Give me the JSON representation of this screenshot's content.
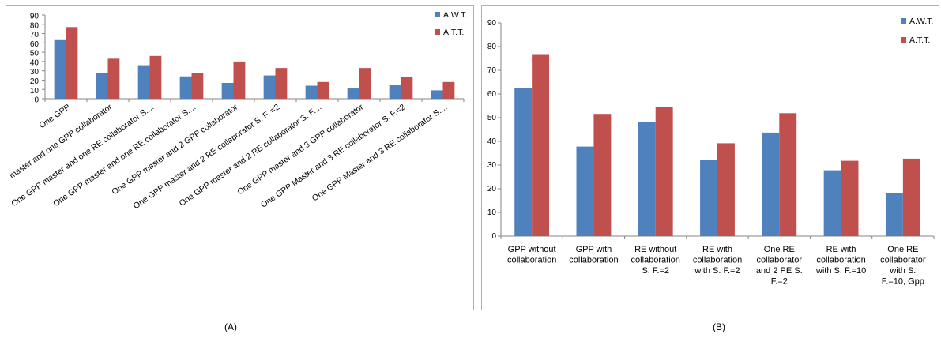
{
  "figure_captions": [
    "(A)",
    "(B)"
  ],
  "colors": {
    "awt": "#4f81bd",
    "att": "#c0504d",
    "axis": "#868686",
    "frame": "#b0b0b0"
  },
  "chart_data": [
    {
      "type": "bar",
      "title": "",
      "xlabel": "",
      "ylabel": "",
      "ylim": [
        0,
        90
      ],
      "yticks": [
        0,
        10,
        20,
        30,
        40,
        50,
        60,
        70,
        80,
        90
      ],
      "grid": false,
      "legend_position": "top-right",
      "categories": [
        "One GPP",
        "master and one GPP collaborator",
        "One GPP master and one RE collaborator S....",
        "One GPP master and one RE collaborator S....",
        "One GPP master and 2 GPP collaborator",
        "One GPP master and 2 RE collaborator S. F. =2",
        "One GPP master and 2 RE collaborator S. F....",
        "One GPP master and 3 GPP collaborator",
        "One GPP Master  and 3 RE collaborator S. F.=2",
        "One GPP Master  and 3 RE collaborator S...."
      ],
      "series": [
        {
          "name": "A.W.T.",
          "values": [
            63,
            28,
            36,
            24,
            17,
            25,
            14,
            11,
            15,
            9
          ]
        },
        {
          "name": "A.T.T.",
          "values": [
            77,
            43,
            46,
            28,
            40,
            33,
            18,
            33,
            23,
            18
          ]
        }
      ]
    },
    {
      "type": "bar",
      "title": "",
      "xlabel": "",
      "ylabel": "",
      "ylim": [
        0,
        90
      ],
      "yticks": [
        0,
        10,
        20,
        30,
        40,
        50,
        60,
        70,
        80,
        90
      ],
      "grid": false,
      "legend_position": "top-right",
      "categories": [
        [
          "GPP without",
          "collaboration"
        ],
        [
          "GPP with",
          "collaboration"
        ],
        [
          "RE  without",
          "collaboration",
          "S. F.=2"
        ],
        [
          "RE with",
          "collaboration",
          "with S. F.=2"
        ],
        [
          "One RE",
          "collaborator",
          "and 2 PE S.",
          "F.=2"
        ],
        [
          "RE with",
          "collaboration",
          "with S. F.=10"
        ],
        [
          "One RE",
          "collaborator",
          "with S.",
          "F.=10, Gpp"
        ]
      ],
      "series": [
        {
          "name": "A.W.T.",
          "values": [
            62.5,
            37.8,
            48.0,
            32.3,
            43.7,
            27.8,
            18.3
          ]
        },
        {
          "name": "A.T.T.",
          "values": [
            76.5,
            51.6,
            54.6,
            39.2,
            51.9,
            31.8,
            32.7
          ]
        }
      ]
    }
  ]
}
